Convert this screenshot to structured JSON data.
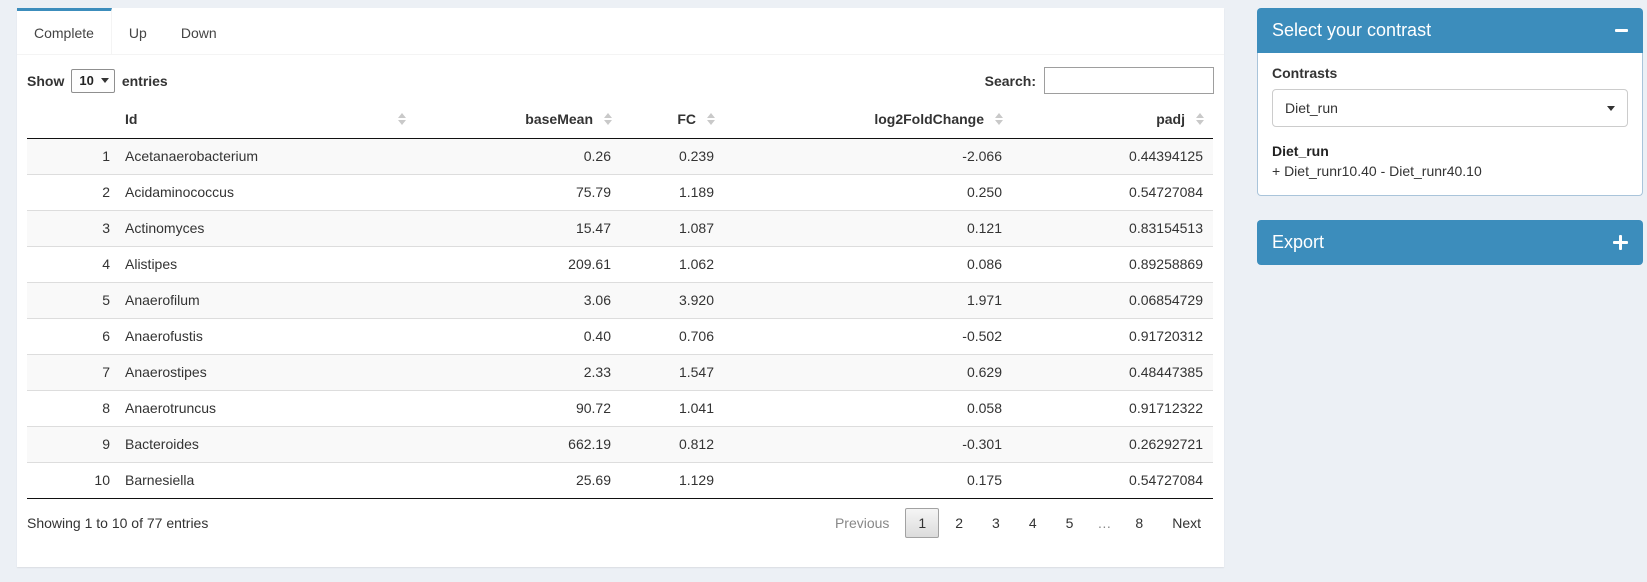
{
  "page": {
    "background": "#ecf0f5",
    "accent": "#3c8dbc"
  },
  "tabbox": {
    "tabs": [
      {
        "label": "Complete",
        "active": true
      },
      {
        "label": "Up",
        "active": false
      },
      {
        "label": "Down",
        "active": false
      }
    ]
  },
  "controls": {
    "show_label": "Show",
    "page_length": "10",
    "entries_label": "entries",
    "search_label": "Search:",
    "search_value": ""
  },
  "table": {
    "headers": [
      {
        "label": ""
      },
      {
        "label": "Id"
      },
      {
        "label": "baseMean"
      },
      {
        "label": "FC"
      },
      {
        "label": "log2FoldChange"
      },
      {
        "label": "padj"
      }
    ],
    "rows": [
      {
        "num": "1",
        "id": "Acetanaerobacterium",
        "baseMean": "0.26",
        "fc": "0.239",
        "log2FoldChange": "-2.066",
        "padj": "0.44394125"
      },
      {
        "num": "2",
        "id": "Acidaminococcus",
        "baseMean": "75.79",
        "fc": "1.189",
        "log2FoldChange": "0.250",
        "padj": "0.54727084"
      },
      {
        "num": "3",
        "id": "Actinomyces",
        "baseMean": "15.47",
        "fc": "1.087",
        "log2FoldChange": "0.121",
        "padj": "0.83154513"
      },
      {
        "num": "4",
        "id": "Alistipes",
        "baseMean": "209.61",
        "fc": "1.062",
        "log2FoldChange": "0.086",
        "padj": "0.89258869"
      },
      {
        "num": "5",
        "id": "Anaerofilum",
        "baseMean": "3.06",
        "fc": "3.920",
        "log2FoldChange": "1.971",
        "padj": "0.06854729"
      },
      {
        "num": "6",
        "id": "Anaerofustis",
        "baseMean": "0.40",
        "fc": "0.706",
        "log2FoldChange": "-0.502",
        "padj": "0.91720312"
      },
      {
        "num": "7",
        "id": "Anaerostipes",
        "baseMean": "2.33",
        "fc": "1.547",
        "log2FoldChange": "0.629",
        "padj": "0.48447385"
      },
      {
        "num": "8",
        "id": "Anaerotruncus",
        "baseMean": "90.72",
        "fc": "1.041",
        "log2FoldChange": "0.058",
        "padj": "0.91712322"
      },
      {
        "num": "9",
        "id": "Bacteroides",
        "baseMean": "662.19",
        "fc": "0.812",
        "log2FoldChange": "-0.301",
        "padj": "0.26292721"
      },
      {
        "num": "10",
        "id": "Barnesiella",
        "baseMean": "25.69",
        "fc": "1.129",
        "log2FoldChange": "0.175",
        "padj": "0.54727084"
      }
    ]
  },
  "footer": {
    "info": "Showing 1 to 10 of 77 entries",
    "pagination": [
      {
        "label": "Previous",
        "type": "disabled"
      },
      {
        "label": "1",
        "type": "active"
      },
      {
        "label": "2",
        "type": "link"
      },
      {
        "label": "3",
        "type": "link"
      },
      {
        "label": "4",
        "type": "link"
      },
      {
        "label": "5",
        "type": "link"
      },
      {
        "label": "…",
        "type": "ellipsis"
      },
      {
        "label": "8",
        "type": "link"
      },
      {
        "label": "Next",
        "type": "link"
      }
    ]
  },
  "sidebar": {
    "contrast_panel": {
      "title": "Select your contrast",
      "collapse_icon": "minus-icon",
      "contrasts_label": "Contrasts",
      "selected_contrast": "Diet_run",
      "contrast_name": "Diet_run",
      "contrast_formula": "+ Diet_runr10.40 - Diet_runr40.10"
    },
    "export_panel": {
      "title": "Export",
      "collapse_icon": "plus-icon"
    }
  }
}
